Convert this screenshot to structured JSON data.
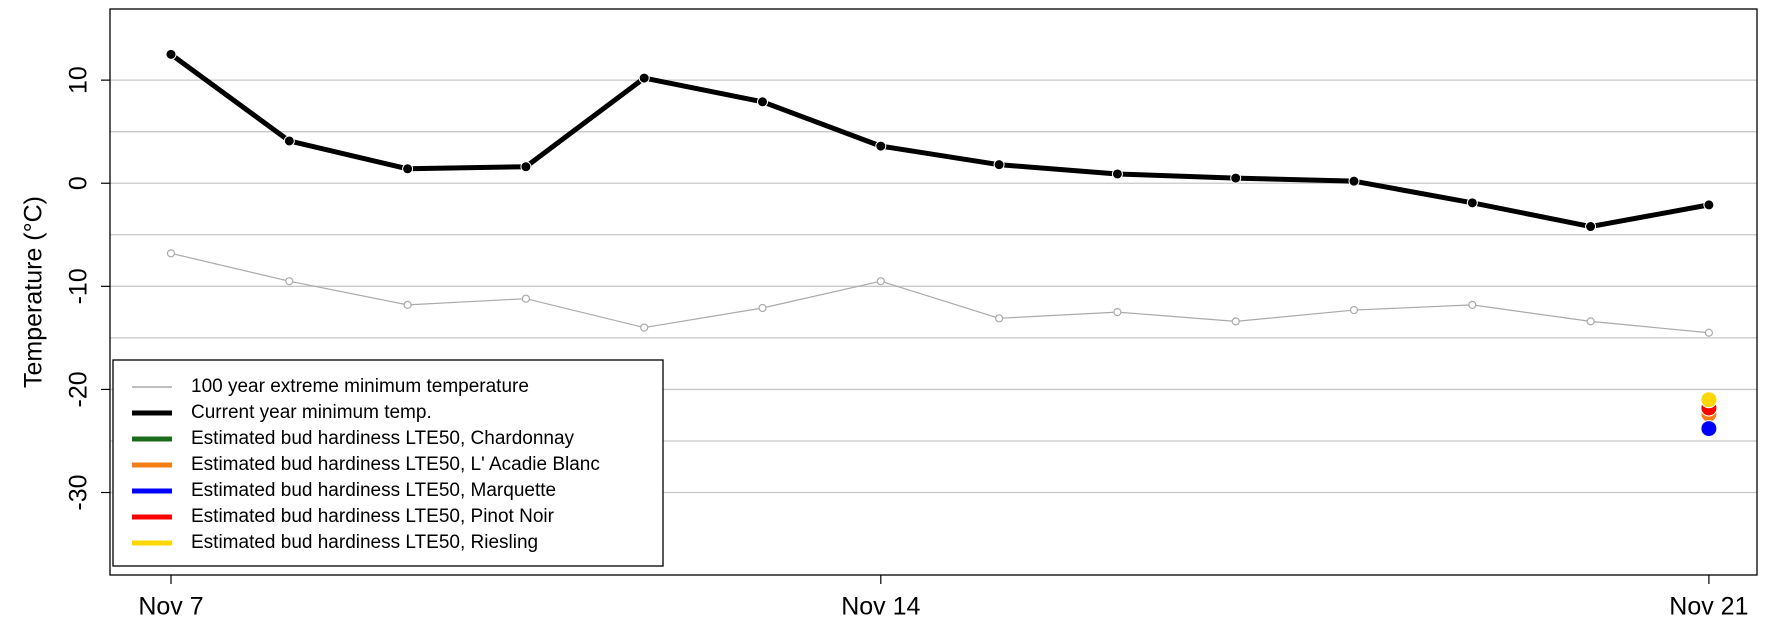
{
  "chart_data": {
    "type": "line",
    "ylabel": "Temperature (°C)",
    "categories": [
      "Nov 7",
      null,
      null,
      null,
      null,
      null,
      "Nov 14",
      null,
      null,
      null,
      null,
      null,
      null,
      "Nov 21"
    ],
    "ylim": [
      -38.0,
      16.9
    ],
    "yticks": [
      10,
      0,
      -10,
      -20,
      -30
    ],
    "ygrid": [
      10,
      5,
      0,
      -5,
      -10,
      -15,
      -20,
      -25,
      -30
    ],
    "legend": "bottom-left",
    "series": [
      {
        "name": "100 year extreme minimum temperature",
        "color": "#aaaaaa",
        "linewidth": 1.2,
        "marker": "open",
        "marker_size": 3.5,
        "values": [
          -6.8,
          -9.5,
          -11.8,
          -11.2,
          -14.0,
          -12.1,
          -9.5,
          -13.1,
          -12.5,
          -13.4,
          -12.3,
          -11.8,
          -13.4,
          -14.5
        ]
      },
      {
        "name": "Current year minimum temp.",
        "color": "#000000",
        "linewidth": 5,
        "marker": "filled",
        "marker_size": 5,
        "values": [
          12.5,
          4.1,
          1.4,
          1.6,
          10.2,
          7.9,
          3.6,
          1.8,
          0.9,
          0.5,
          0.2,
          -1.9,
          -4.2,
          -2.1
        ]
      },
      {
        "name": "Estimated bud hardiness LTE50, Chardonnay",
        "color": "#1a6b1a",
        "linewidth": 5,
        "marker": "filled",
        "marker_size": 8,
        "values": [
          null,
          null,
          null,
          null,
          null,
          null,
          null,
          null,
          null,
          null,
          null,
          null,
          null,
          -22.3
        ]
      },
      {
        "name": "Estimated bud hardiness LTE50, L' Acadie Blanc",
        "color": "#f57f17",
        "linewidth": 5,
        "marker": "filled",
        "marker_size": 8,
        "values": [
          null,
          null,
          null,
          null,
          null,
          null,
          null,
          null,
          null,
          null,
          null,
          null,
          null,
          -22.4
        ]
      },
      {
        "name": "Estimated bud hardiness LTE50, Marquette",
        "color": "#0000ff",
        "linewidth": 5,
        "marker": "filled",
        "marker_size": 8,
        "values": [
          null,
          null,
          null,
          null,
          null,
          null,
          null,
          null,
          null,
          null,
          null,
          null,
          null,
          -23.8
        ]
      },
      {
        "name": "Estimated bud hardiness LTE50, Pinot Noir",
        "color": "#ff0000",
        "linewidth": 5,
        "marker": "filled",
        "marker_size": 8,
        "values": [
          null,
          null,
          null,
          null,
          null,
          null,
          null,
          null,
          null,
          null,
          null,
          null,
          null,
          -21.8
        ]
      },
      {
        "name": "Estimated bud hardiness LTE50, Riesling",
        "color": "#ffd700",
        "linewidth": 5,
        "marker": "filled",
        "marker_size": 8,
        "values": [
          null,
          null,
          null,
          null,
          null,
          null,
          null,
          null,
          null,
          null,
          null,
          null,
          null,
          -21.0
        ]
      }
    ]
  }
}
